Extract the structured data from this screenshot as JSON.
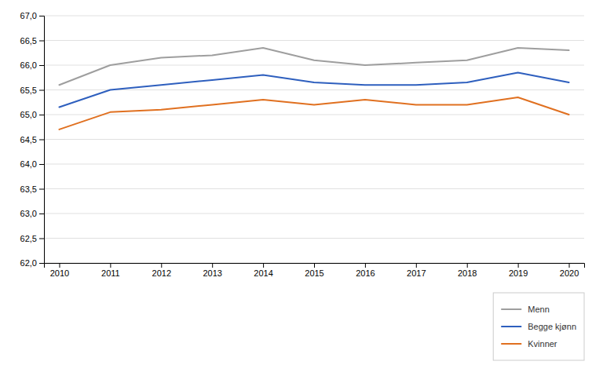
{
  "chart_data": {
    "type": "line",
    "x": [
      2010,
      2011,
      2012,
      2013,
      2014,
      2015,
      2016,
      2017,
      2018,
      2019,
      2020
    ],
    "series": [
      {
        "name": "Menn",
        "color": "#9e9e9e",
        "values": [
          65.6,
          66.0,
          66.15,
          66.2,
          66.35,
          66.1,
          66.0,
          66.05,
          66.1,
          66.35,
          66.3
        ]
      },
      {
        "name": "Begge kjønn",
        "color": "#2e5fbe",
        "values": [
          65.15,
          65.5,
          65.6,
          65.7,
          65.8,
          65.65,
          65.6,
          65.6,
          65.65,
          65.85,
          65.65
        ]
      },
      {
        "name": "Kvinner",
        "color": "#e07020",
        "values": [
          64.7,
          65.05,
          65.1,
          65.2,
          65.3,
          65.2,
          65.3,
          65.2,
          65.2,
          65.35,
          65.0
        ]
      }
    ],
    "xlim": [
      2009.7,
      2020.3
    ],
    "xticks": [
      2010,
      2011,
      2012,
      2013,
      2014,
      2015,
      2016,
      2017,
      2018,
      2019,
      2020
    ],
    "ylim": [
      62.0,
      67.0
    ],
    "yticks": [
      {
        "value": 62.0,
        "label": "62,0"
      },
      {
        "value": 62.5,
        "label": "62,5"
      },
      {
        "value": 63.0,
        "label": "63,0"
      },
      {
        "value": 63.5,
        "label": "63,5"
      },
      {
        "value": 64.0,
        "label": "64,0"
      },
      {
        "value": 64.5,
        "label": "64,5"
      },
      {
        "value": 65.0,
        "label": "65,0"
      },
      {
        "value": 65.5,
        "label": "65,5"
      },
      {
        "value": 66.0,
        "label": "66,0"
      },
      {
        "value": 66.5,
        "label": "66,5"
      },
      {
        "value": 67.0,
        "label": "67,0"
      }
    ],
    "grid": true,
    "legend": "lower right"
  }
}
